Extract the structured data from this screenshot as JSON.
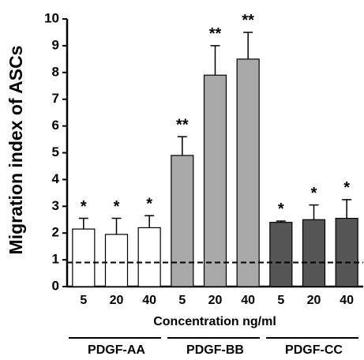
{
  "chart_data": {
    "type": "bar",
    "y_label": "Migration index of ASCs",
    "x_label": "Concentration ng/ml",
    "ylim": [
      0,
      10
    ],
    "yticks": [
      0,
      1,
      2,
      3,
      4,
      5,
      6,
      7,
      8,
      9,
      10
    ],
    "reference_line": 0.9,
    "groups": [
      {
        "name": "PDGF-AA",
        "color": "#ffffff",
        "categories": [
          "5",
          "20",
          "40"
        ],
        "values": [
          2.15,
          1.95,
          2.2
        ],
        "errors": [
          0.4,
          0.6,
          0.45
        ],
        "annotations": [
          "*",
          "*",
          "*"
        ]
      },
      {
        "name": "PDGF-BB",
        "color": "#a9a9a9",
        "categories": [
          "5",
          "20",
          "40"
        ],
        "values": [
          4.9,
          7.9,
          8.5
        ],
        "errors": [
          0.7,
          1.1,
          1.0
        ],
        "annotations": [
          "**",
          "**",
          "**"
        ]
      },
      {
        "name": "PDGF-CC",
        "color": "#565656",
        "categories": [
          "5",
          "20",
          "40"
        ],
        "values": [
          2.4,
          2.5,
          2.55
        ],
        "errors": [
          0.05,
          0.55,
          0.7
        ],
        "annotations": [
          "*",
          "*",
          "*"
        ]
      }
    ]
  }
}
